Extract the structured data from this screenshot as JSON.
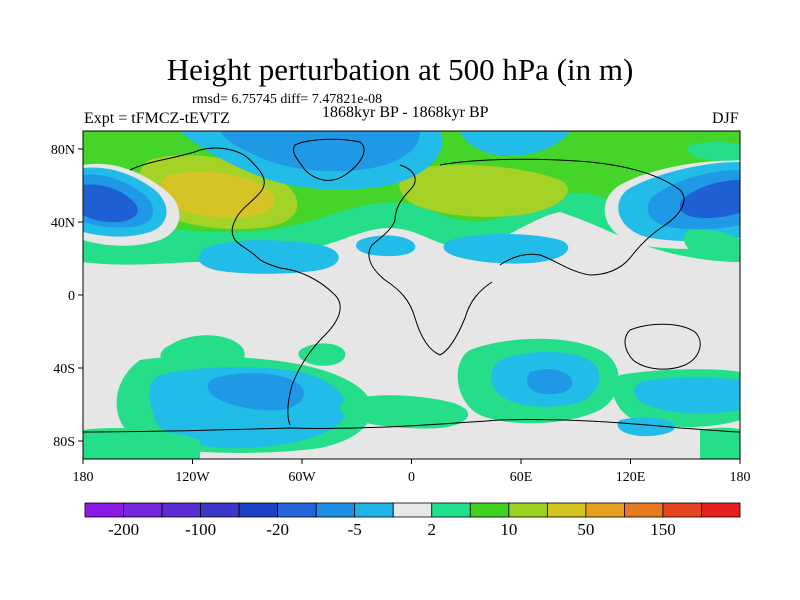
{
  "title": "Height perturbation at 500 hPa (in m)",
  "stats": "rmsd= 6.75745 diff= 7.47821e-08",
  "experiment": "Expt = tFMCZ-tEVTZ",
  "period": "1868kyr BP - 1868kyr BP",
  "season": "DJF",
  "axes": {
    "x_ticks": [
      "180",
      "120W",
      "60W",
      "0",
      "60E",
      "120E",
      "180"
    ],
    "y_ticks": [
      "80N",
      "40N",
      "0",
      "40S",
      "80S"
    ]
  },
  "colorbar": {
    "labels": [
      "-200",
      "-100",
      "-20",
      "-5",
      "2",
      "10",
      "50",
      "150"
    ],
    "colors": [
      "#8c1ae6",
      "#7826dc",
      "#5a2ed2",
      "#3c36c8",
      "#1e40c8",
      "#2466d9",
      "#1f8fe6",
      "#20b4e6",
      "#e8e8e8",
      "#1fe08c",
      "#3fd21f",
      "#9ed21f",
      "#d2c31f",
      "#e6a01f",
      "#e6781f",
      "#e6461f",
      "#e61f1f"
    ]
  },
  "palette": {
    "neutral": "#e6e6e6",
    "light_blue": "#22bce8",
    "mid_blue": "#1f98e6",
    "dark_blue": "#1e60d4",
    "light_green": "#24de8a",
    "green": "#44d42a",
    "yellow_green": "#a4d226",
    "yellow": "#d6c426"
  }
}
